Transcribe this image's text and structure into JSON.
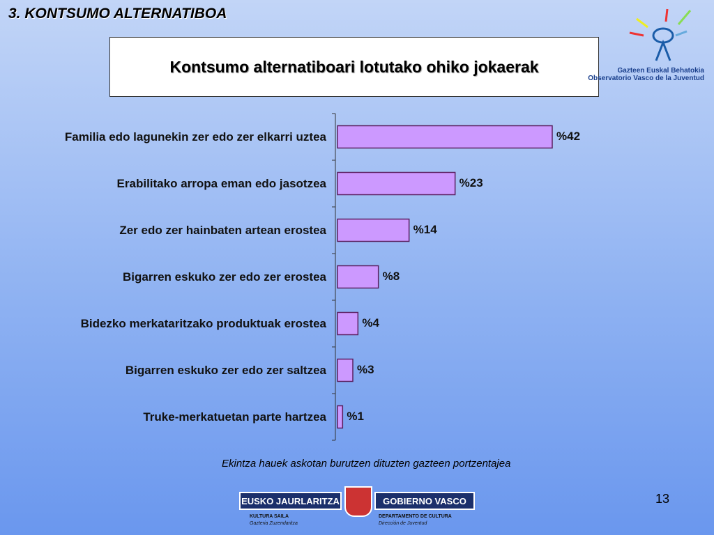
{
  "slide": {
    "heading": "3. KONTSUMO ALTERNATIBOA",
    "page_number": "13",
    "observatory": [
      "Gazteen Euskal Behatokia",
      "Observatorio Vasco de la Juventud"
    ],
    "footer_left": {
      "name": "EUSKO JAURLARITZA",
      "dept": "KULTURA SAILA",
      "unit": "Gazteria Zuzendaritza"
    },
    "footer_right": {
      "name": "GOBIERNO VASCO",
      "dept": "DEPARTAMENTO DE CULTURA",
      "unit": "Dirección de Juventud"
    }
  },
  "chart_data": {
    "type": "hbar",
    "title": "Kontsumo alternatiboari lotutako ohiko jokaerak",
    "note": "Ekintza hauek askotan burutzen dituzten gazteen portzentajea",
    "categories": [
      "Familia edo lagunekin zer edo zer elkarri uztea",
      "Erabilitako arropa eman edo jasotzea",
      "Zer edo zer hainbaten artean erostea",
      "Bigarren eskuko zer edo zer erostea",
      "Bidezko merkataritzako produktuak erostea",
      "Bigarren eskuko zer edo zer saltzea",
      "Truke-merkatuetan parte hartzea"
    ],
    "values": [
      42,
      23,
      14,
      8,
      4,
      3,
      1
    ],
    "value_labels": [
      "%42",
      "%23",
      "%14",
      "%8",
      "%4",
      "%3",
      "%1"
    ],
    "color": "#cc99ff"
  }
}
